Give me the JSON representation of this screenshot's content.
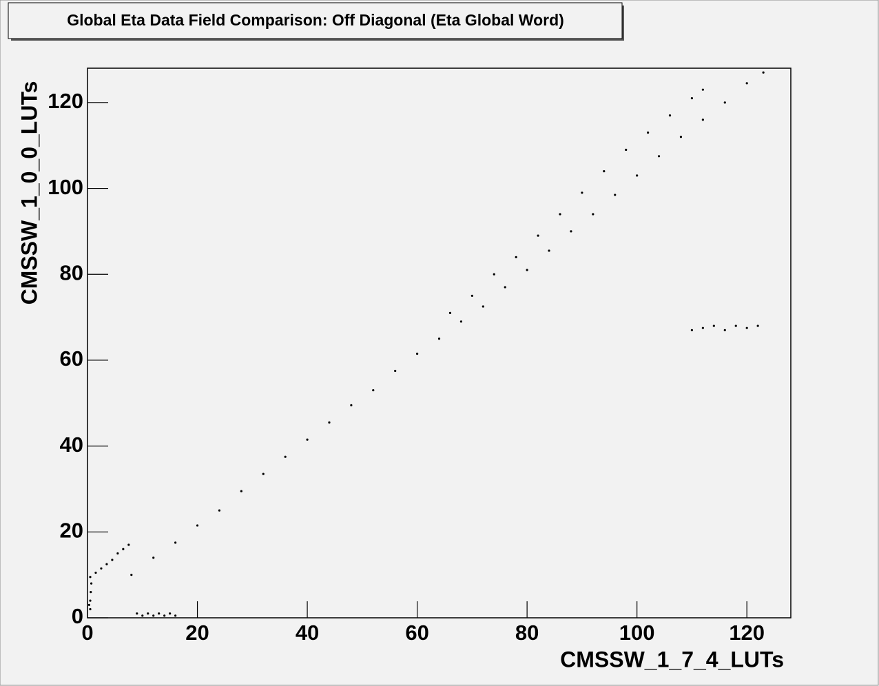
{
  "chart_data": {
    "type": "scatter",
    "title": "Global Eta Data Field Comparison: Off Diagonal (Eta Global Word)",
    "x_label": "CMSSW_1_7_4_LUTs",
    "y_label": "CMSSW_1_0_0_LUTs",
    "xlim": [
      0,
      128
    ],
    "ylim": [
      0,
      128
    ],
    "xticks": [
      0,
      20,
      40,
      60,
      80,
      100,
      120
    ],
    "yticks": [
      0,
      20,
      40,
      60,
      80,
      100,
      120
    ],
    "color": "#000000",
    "x": [
      0.5,
      0.5,
      0.6,
      0.7,
      0.5,
      0.3,
      1.5,
      2.5,
      3.5,
      4.5,
      5.5,
      6.5,
      7.5,
      9,
      10,
      11,
      12,
      13,
      14,
      15,
      16,
      8,
      12,
      16,
      20,
      24,
      28,
      32,
      36,
      40,
      44,
      48,
      52,
      56,
      60,
      64,
      66,
      70,
      74,
      78,
      82,
      86,
      90,
      94,
      98,
      102,
      106,
      110,
      112,
      68,
      72,
      76,
      80,
      84,
      88,
      92,
      96,
      100,
      104,
      108,
      112,
      116,
      120,
      123,
      110,
      112,
      114,
      116,
      118,
      120,
      122
    ],
    "y": [
      2,
      4,
      6,
      8,
      9.5,
      3,
      10.5,
      11.5,
      12.5,
      13.5,
      15,
      16,
      17,
      1,
      0.5,
      1,
      0.5,
      1,
      0.5,
      1,
      0.5,
      10,
      14,
      17.5,
      21.5,
      25,
      29.5,
      33.5,
      37.5,
      41.5,
      45.5,
      49.5,
      53,
      57.5,
      61.5,
      65,
      71,
      75,
      80,
      84,
      89,
      94,
      99,
      104,
      109,
      113,
      117,
      121,
      123,
      69,
      72.5,
      77,
      81,
      85.5,
      90,
      94,
      98.5,
      103,
      107.5,
      112,
      116,
      120,
      124.5,
      127,
      67,
      67.5,
      68,
      67,
      68,
      67.5,
      68
    ]
  }
}
